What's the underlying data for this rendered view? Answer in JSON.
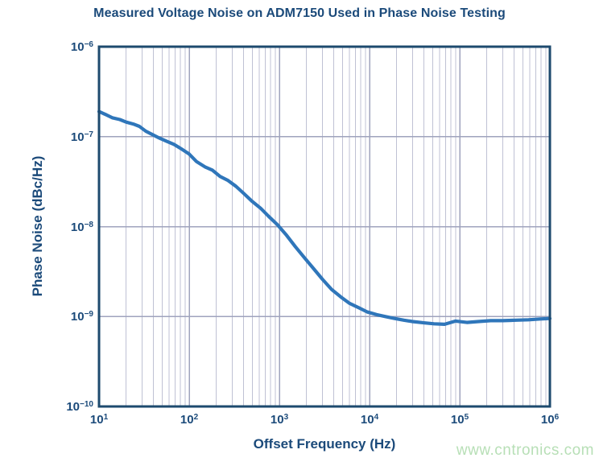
{
  "page": {
    "watermark": "www.cntronics.com"
  },
  "colors": {
    "text_navy": "#1b4a7a",
    "plot_frame": "#1d4a6e",
    "curve_blue": "#2f76ba",
    "grid_minor": "#bfc1d4",
    "grid_major": "#9fa3bd",
    "watermark_green": "#b7dfb6",
    "background": "#ffffff"
  },
  "chart_data": {
    "type": "line",
    "title": "Measured Voltage Noise on ADM7150 Used in Phase Noise Testing",
    "xlabel": "Offset Frequency (Hz)",
    "ylabel": "Phase Noise (dBc/Hz)",
    "x_scale": "log",
    "y_scale": "log",
    "xlim": [
      10,
      1000000
    ],
    "ylim": [
      1e-10,
      1e-06
    ],
    "grid": true,
    "grid_style": "vertical minors at 2-9 per decade; horizontal lines at decades only",
    "legend": "none",
    "x_ticks": {
      "base": 10,
      "exponents": [
        1,
        2,
        3,
        4,
        5,
        6
      ]
    },
    "y_ticks": {
      "base": 10,
      "exponents": [
        -6,
        -7,
        -8,
        -9,
        -10
      ]
    },
    "x": [
      10,
      12,
      14,
      17,
      20,
      24,
      28,
      33,
      40,
      47,
      56,
      68,
      82,
      100,
      120,
      150,
      180,
      220,
      270,
      330,
      400,
      500,
      620,
      760,
      950,
      1200,
      1500,
      1900,
      2400,
      3000,
      3800,
      4800,
      6000,
      7600,
      9500,
      12000,
      15000,
      19000,
      24000,
      30000,
      40000,
      52000,
      68000,
      90000,
      120000,
      160000,
      220000,
      300000,
      420000,
      580000,
      780000,
      1000000
    ],
    "y": [
      1.9e-07,
      1.75e-07,
      1.62e-07,
      1.55e-07,
      1.45e-07,
      1.38e-07,
      1.3e-07,
      1.15e-07,
      1.04e-07,
      9.6e-08,
      8.9e-08,
      8.2e-08,
      7.3e-08,
      6.4e-08,
      5.3e-08,
      4.6e-08,
      4.25e-08,
      3.6e-08,
      3.25e-08,
      2.8e-08,
      2.35e-08,
      1.9e-08,
      1.6e-08,
      1.3e-08,
      1.05e-08,
      8e-09,
      6e-09,
      4.5e-09,
      3.4e-09,
      2.6e-09,
      2e-09,
      1.65e-09,
      1.4e-09,
      1.25e-09,
      1.12e-09,
      1.05e-09,
      1e-09,
      9.5e-10,
      9.1e-10,
      8.8e-10,
      8.5e-10,
      8.3e-10,
      8.2e-10,
      8.9e-10,
      8.6e-10,
      8.8e-10,
      9e-10,
      9e-10,
      9.1e-10,
      9.2e-10,
      9.4e-10,
      9.5e-10
    ]
  }
}
